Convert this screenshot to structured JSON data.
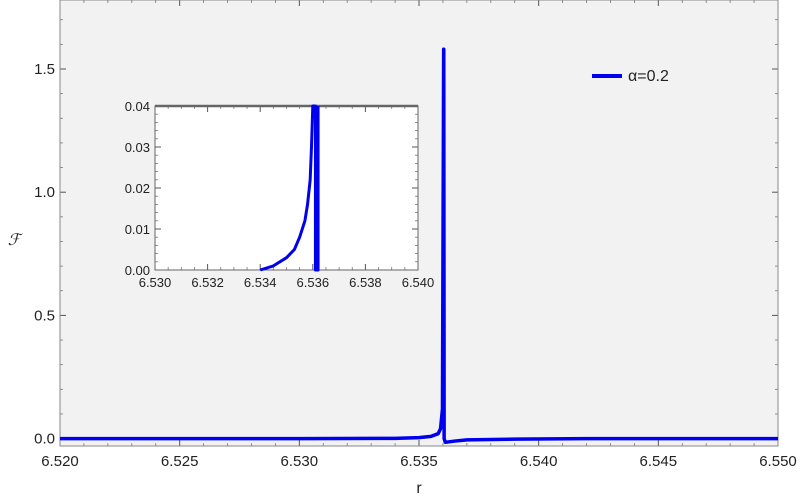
{
  "chart_data": {
    "type": "line",
    "xlabel": "r",
    "ylabel": "ℱ",
    "xlim": [
      6.52,
      6.55
    ],
    "ylim": [
      -0.03,
      1.78
    ],
    "grid": false,
    "legend_position": "top-right",
    "xticks": [
      "6.520",
      "6.525",
      "6.530",
      "6.535",
      "6.540",
      "6.545",
      "6.550"
    ],
    "yticks": [
      "0.0",
      "0.5",
      "1.0",
      "1.5"
    ],
    "colors": {
      "series": "#0000ee",
      "frame": "#888888",
      "background": "#f2f2f2"
    },
    "series": [
      {
        "name": "α=0.2",
        "x": [
          6.52,
          6.53,
          6.534,
          6.535,
          6.5355,
          6.5358,
          6.5359,
          6.53598,
          6.53603,
          6.536035,
          6.53605,
          6.5361,
          6.5365,
          6.537,
          6.539,
          6.542,
          6.55
        ],
        "y": [
          0.0,
          0.0,
          0.001,
          0.004,
          0.009,
          0.02,
          0.04,
          0.12,
          1.58,
          1.58,
          0.0,
          -0.015,
          -0.01,
          -0.005,
          -0.002,
          0.0,
          0.0
        ]
      }
    ],
    "inset": {
      "xlim": [
        6.53,
        6.54
      ],
      "ylim": [
        0.0,
        0.04
      ],
      "xticks": [
        "6.530",
        "6.532",
        "6.534",
        "6.536",
        "6.538",
        "6.540"
      ],
      "yticks": [
        "0.00",
        "0.01",
        "0.02",
        "0.03",
        "0.04"
      ],
      "series": [
        {
          "x": [
            6.534,
            6.5345,
            6.535,
            6.5353,
            6.5355,
            6.5357,
            6.5358,
            6.5359,
            6.53595,
            6.536,
            6.5361,
            6.5361,
            6.5362,
            6.5362
          ],
          "y": [
            0.0,
            0.001,
            0.003,
            0.005,
            0.008,
            0.012,
            0.016,
            0.022,
            0.03,
            0.04,
            0.04,
            0.0,
            0.0,
            0.04
          ]
        }
      ]
    }
  }
}
